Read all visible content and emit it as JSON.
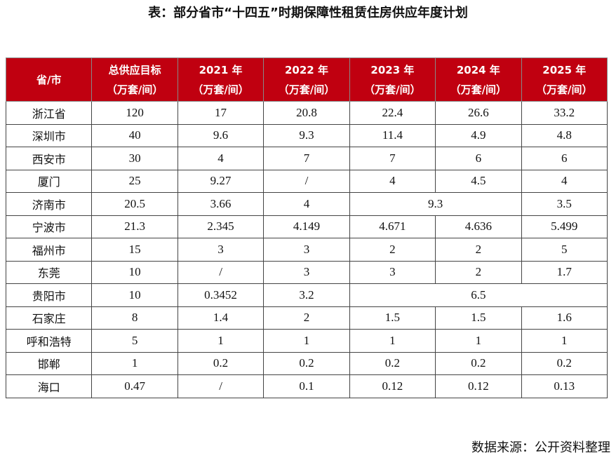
{
  "title": "表：部分省市“十四五”时期保障性租赁住房供应年度计划",
  "table": {
    "header": [
      [
        "省/市"
      ],
      [
        "总供应目标",
        "（万套/间）"
      ],
      [
        "2021 年",
        "（万套/间）"
      ],
      [
        "2022 年",
        "（万套/间）"
      ],
      [
        "2023 年",
        "（万套/间）"
      ],
      [
        "2024 年",
        "（万套/间）"
      ],
      [
        "2025 年",
        "（万套/间）"
      ]
    ],
    "rows": [
      [
        "浙江省",
        "120",
        "17",
        "20.8",
        "22.4",
        "26.6",
        "33.2"
      ],
      [
        "深圳市",
        "40",
        "9.6",
        "9.3",
        "11.4",
        "4.9",
        "4.8"
      ],
      [
        "西安市",
        "30",
        "4",
        "7",
        "7",
        "6",
        "6"
      ],
      [
        "厦门",
        "25",
        "9.27",
        "/",
        "4",
        "4.5",
        "4"
      ],
      [
        "济南市",
        "20.5",
        "3.66",
        "4",
        "9.3",
        "3.5"
      ],
      [
        "宁波市",
        "21.3",
        "2.345",
        "4.149",
        "4.671",
        "4.636",
        "5.499"
      ],
      [
        "福州市",
        "15",
        "3",
        "3",
        "2",
        "2",
        "5"
      ],
      [
        "东莞",
        "10",
        "/",
        "3",
        "3",
        "2",
        "1.7"
      ],
      [
        "贵阳市",
        "10",
        "0.3452",
        "3.2",
        "6.5"
      ],
      [
        "石家庄",
        "8",
        "1.4",
        "2",
        "1.5",
        "1.5",
        "1.6"
      ],
      [
        "呼和浩特",
        "5",
        "1",
        "1",
        "1",
        "1",
        "1"
      ],
      [
        "邯郸",
        "1",
        "0.2",
        "0.2",
        "0.2",
        "0.2",
        "0.2"
      ],
      [
        "海口",
        "0.47",
        "/",
        "0.1",
        "0.12",
        "0.12",
        "0.13"
      ]
    ]
  },
  "source": "数据来源：公开资料整理"
}
